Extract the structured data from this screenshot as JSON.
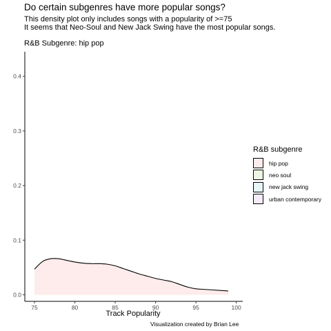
{
  "title": "Do certain subgenres have more popular songs?",
  "subtitle": [
    "This density plot only includes songs with a popularity of >=75",
    "It seems that Neo-Soul and New Jack Swing have the most popular songs."
  ],
  "facet_label": "R&B Subgenre: hip pop",
  "caption": "Visualization created by Brian Lee",
  "chart_data": {
    "type": "area",
    "title": "Do certain subgenres have more popular songs?",
    "xlabel": "Track Popularity",
    "ylabel": "",
    "xlim": [
      73.8,
      100.8
    ],
    "ylim": [
      -0.012,
      0.445
    ],
    "x_ticks": [
      75,
      80,
      85,
      90,
      95,
      100
    ],
    "y_ticks": [
      0.0,
      0.1,
      0.2,
      0.3,
      0.4
    ],
    "x_tick_labels": [
      "75",
      "80",
      "85",
      "90",
      "95",
      "100"
    ],
    "y_tick_labels": [
      "0.0",
      "0.1",
      "0.2",
      "0.3",
      "0.4"
    ],
    "grid": false,
    "legend": {
      "title": "R&B subgenre",
      "position": "right",
      "items": [
        {
          "label": "hip pop",
          "color": "#fdeceb"
        },
        {
          "label": "neo soul",
          "color": "#eef5e4"
        },
        {
          "label": "new jack swing",
          "color": "#e6f5f6"
        },
        {
          "label": "urban contemporary",
          "color": "#f4ecfb"
        }
      ]
    },
    "series": [
      {
        "name": "hip pop",
        "fill": "#fdeceb",
        "stroke": "#000000",
        "x": [
          75,
          76,
          77,
          78,
          79,
          80,
          81,
          82,
          83,
          84,
          85,
          86,
          87,
          88,
          89,
          90,
          91,
          92,
          93,
          94,
          95,
          96,
          97,
          98,
          99
        ],
        "y": [
          0.047,
          0.061,
          0.066,
          0.066,
          0.063,
          0.06,
          0.058,
          0.057,
          0.057,
          0.056,
          0.053,
          0.048,
          0.043,
          0.038,
          0.034,
          0.03,
          0.027,
          0.024,
          0.019,
          0.014,
          0.011,
          0.01,
          0.009,
          0.008,
          0.007
        ]
      }
    ]
  }
}
